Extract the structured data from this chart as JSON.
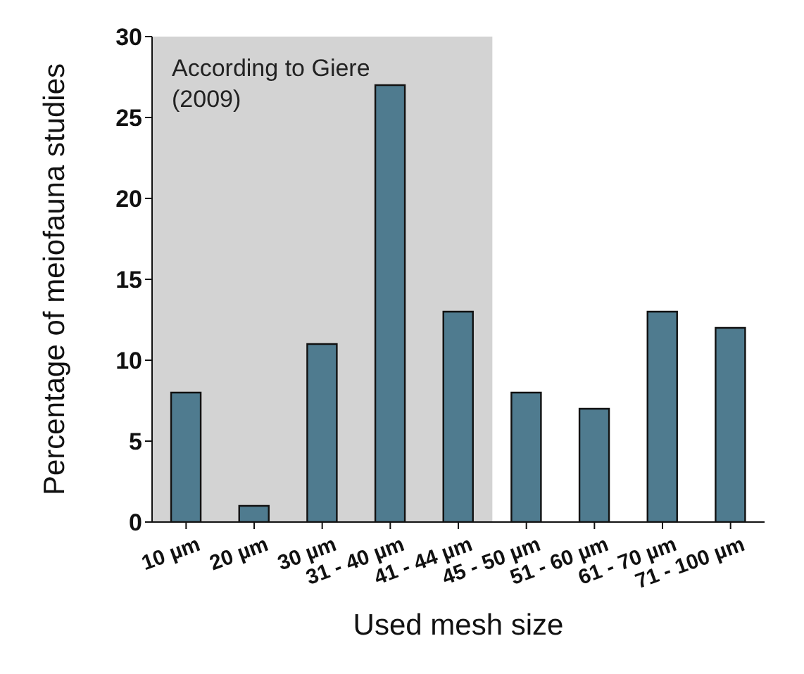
{
  "chart_data": {
    "type": "bar",
    "xlabel": "Used mesh size",
    "ylabel": "Percentage of meiofauna studies",
    "categories": [
      "10 µm",
      "20 µm",
      "30 µm",
      "31 - 40 µm",
      "41 - 44 µm",
      "45 - 50 µm",
      "51 - 60 µm",
      "61 - 70 µm",
      "71 - 100 µm"
    ],
    "values": [
      8,
      1,
      11,
      27,
      13,
      8,
      7,
      13,
      12
    ],
    "color": "#4f7b8f",
    "ylim": [
      0,
      30
    ],
    "yticks": [
      0,
      5,
      10,
      15,
      20,
      25,
      30
    ],
    "grid": false,
    "legend": false,
    "bands": [
      {
        "axis": "x",
        "from": "10 µm",
        "to": "41 - 44 µm",
        "label": "According to Giere (2009)",
        "color": "#d3d3d3"
      }
    ]
  }
}
